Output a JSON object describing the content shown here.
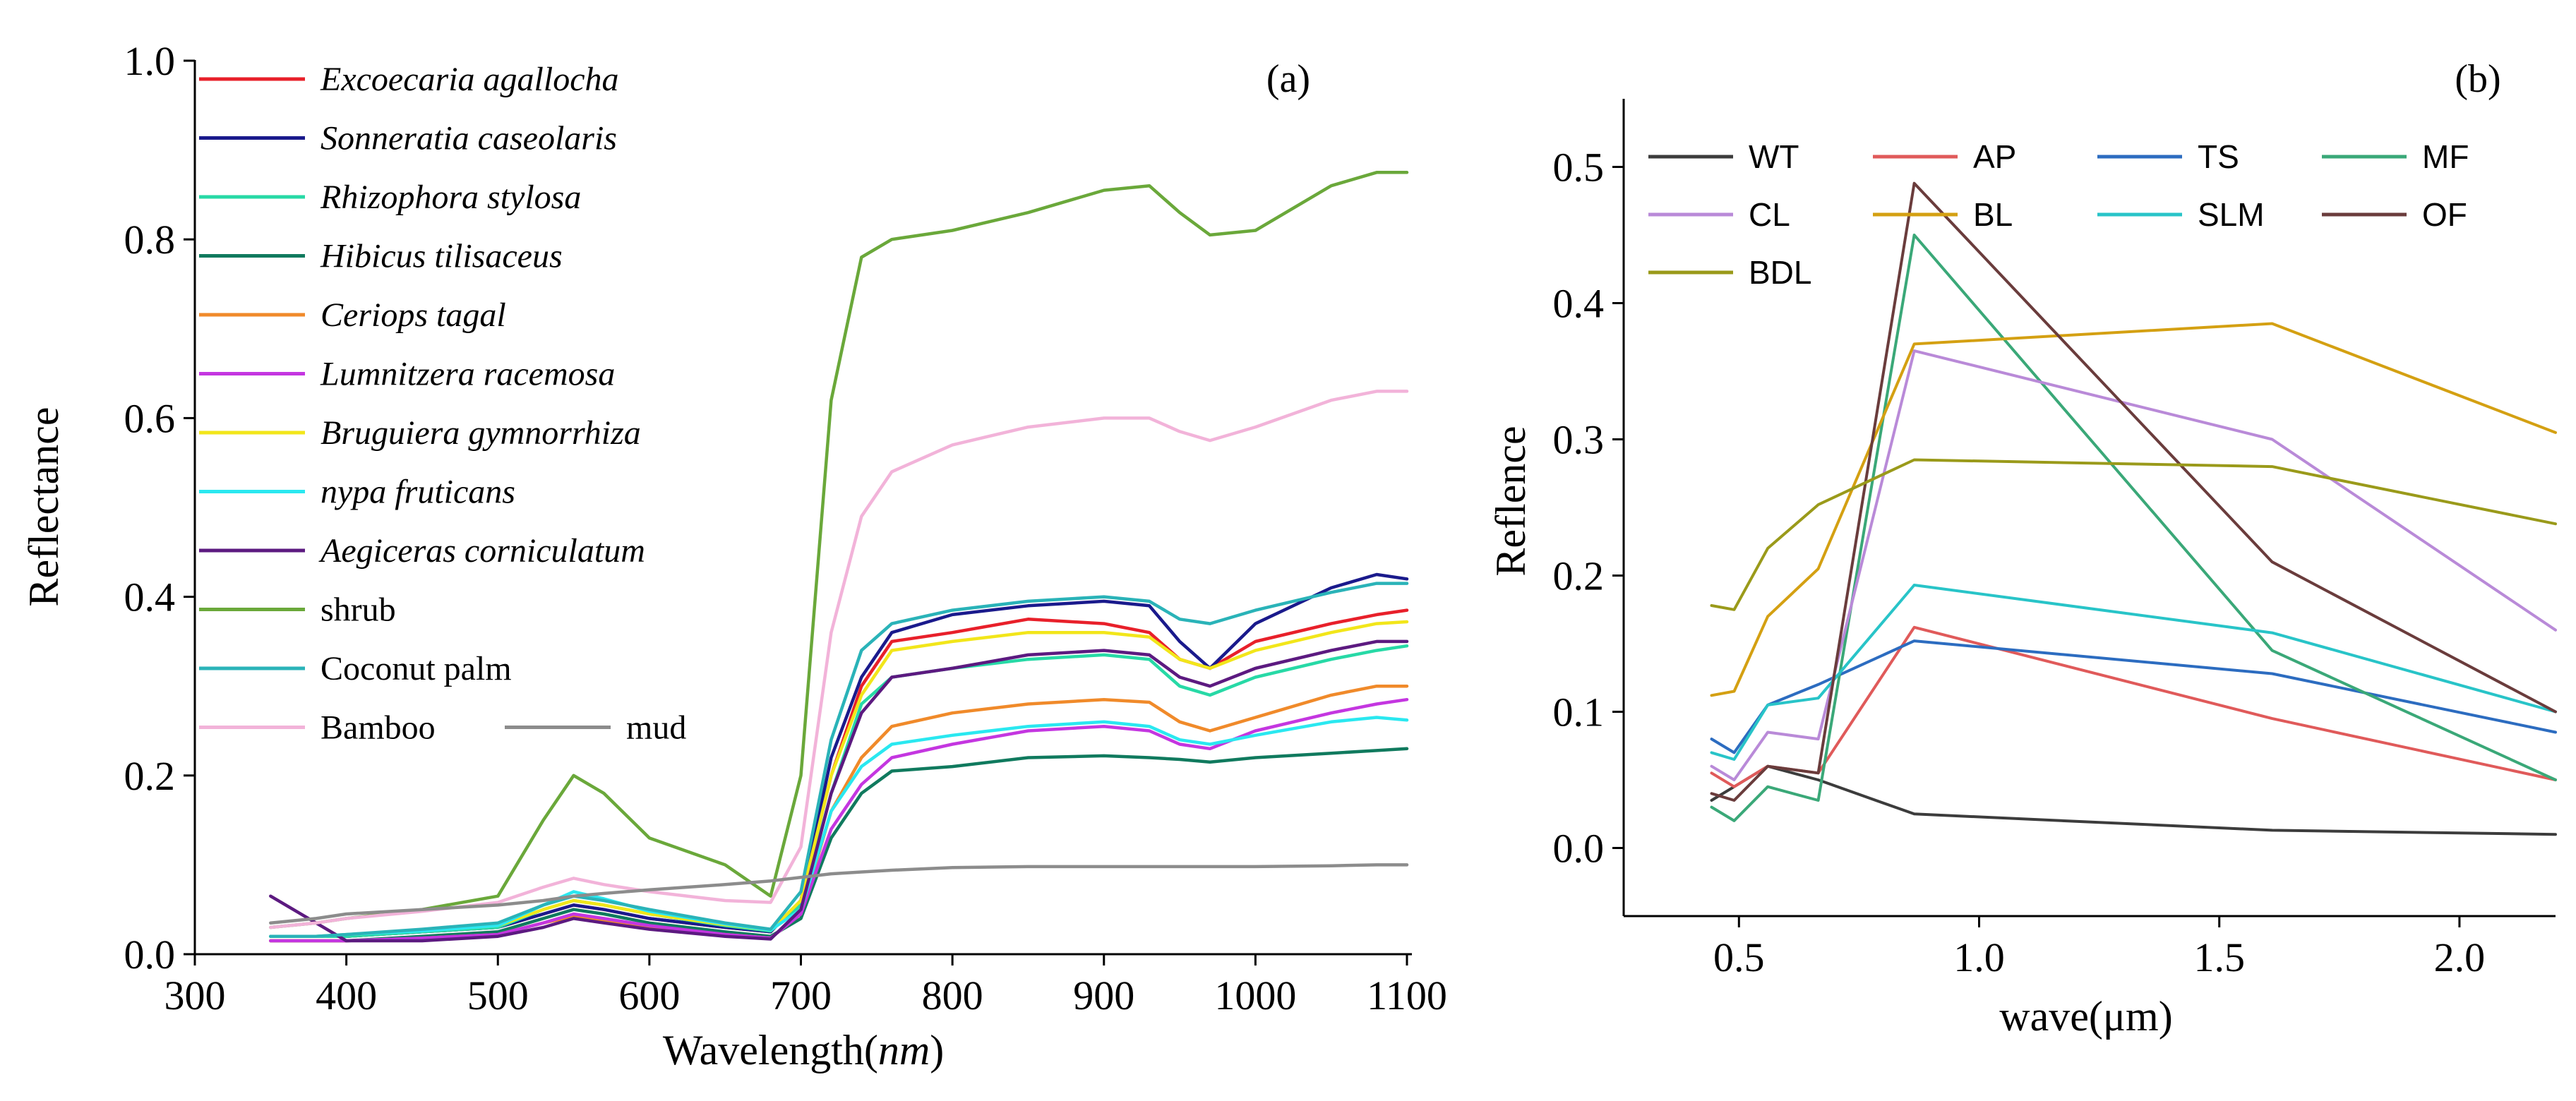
{
  "chart_data": [
    {
      "type": "line",
      "panel_label": "(a)",
      "xlabel_prefix": "Wavelength(",
      "xlabel_unit": "nm",
      "xlabel_suffix": ")",
      "ylabel": "Reflectance",
      "xlim": [
        300,
        1100
      ],
      "ylim": [
        0,
        1.0
      ],
      "xticks": [
        300,
        400,
        500,
        600,
        700,
        800,
        900,
        1000,
        1100
      ],
      "xtick_labels": [
        "300",
        "400",
        "500",
        "600",
        "700",
        "800",
        "900",
        "1000",
        "1100"
      ],
      "yticks": [
        0,
        0.2,
        0.4,
        0.6,
        0.8,
        1.0
      ],
      "ytick_labels": [
        "0.0",
        "0.2",
        "0.4",
        "0.6",
        "0.8",
        "1.0"
      ],
      "legend_position": "top-left",
      "x": [
        350,
        380,
        400,
        450,
        500,
        530,
        550,
        570,
        600,
        650,
        680,
        700,
        720,
        740,
        760,
        800,
        850,
        900,
        930,
        950,
        970,
        1000,
        1050,
        1080,
        1100
      ],
      "series": [
        {
          "name": "Excoecaria agallocha",
          "italic": true,
          "color": "#e8202a",
          "values": [
            0.02,
            0.02,
            0.02,
            0.025,
            0.03,
            0.045,
            0.055,
            0.05,
            0.04,
            0.03,
            0.025,
            0.06,
            0.2,
            0.3,
            0.35,
            0.36,
            0.375,
            0.37,
            0.36,
            0.33,
            0.32,
            0.35,
            0.37,
            0.38,
            0.385
          ]
        },
        {
          "name": "Sonneratia caseolaris",
          "italic": true,
          "color": "#1a1a8c",
          "values": [
            0.02,
            0.02,
            0.02,
            0.025,
            0.03,
            0.045,
            0.055,
            0.05,
            0.04,
            0.03,
            0.025,
            0.06,
            0.22,
            0.31,
            0.36,
            0.38,
            0.39,
            0.395,
            0.39,
            0.35,
            0.32,
            0.37,
            0.41,
            0.425,
            0.42
          ]
        },
        {
          "name": "Rhizophora stylosa",
          "italic": true,
          "color": "#27d9a6",
          "values": [
            0.02,
            0.02,
            0.02,
            0.025,
            0.03,
            0.05,
            0.06,
            0.055,
            0.045,
            0.032,
            0.026,
            0.055,
            0.18,
            0.28,
            0.31,
            0.32,
            0.33,
            0.335,
            0.33,
            0.3,
            0.29,
            0.31,
            0.33,
            0.34,
            0.345
          ]
        },
        {
          "name": "Hibicus tilisaceus",
          "italic": true,
          "color": "#107a5e",
          "values": [
            0.015,
            0.015,
            0.015,
            0.02,
            0.025,
            0.04,
            0.05,
            0.045,
            0.035,
            0.025,
            0.02,
            0.04,
            0.13,
            0.18,
            0.205,
            0.21,
            0.22,
            0.222,
            0.22,
            0.218,
            0.215,
            0.22,
            0.225,
            0.228,
            0.23
          ]
        },
        {
          "name": "Ceriops tagal",
          "italic": true,
          "color": "#f08a2a",
          "values": [
            0.015,
            0.015,
            0.015,
            0.018,
            0.022,
            0.035,
            0.042,
            0.038,
            0.03,
            0.022,
            0.018,
            0.045,
            0.16,
            0.22,
            0.255,
            0.27,
            0.28,
            0.285,
            0.282,
            0.26,
            0.25,
            0.265,
            0.29,
            0.3,
            0.3
          ]
        },
        {
          "name": "Lumnitzera racemosa",
          "italic": true,
          "color": "#c436e0",
          "values": [
            0.015,
            0.015,
            0.015,
            0.018,
            0.022,
            0.035,
            0.045,
            0.04,
            0.032,
            0.022,
            0.018,
            0.045,
            0.14,
            0.19,
            0.22,
            0.235,
            0.25,
            0.255,
            0.25,
            0.235,
            0.23,
            0.25,
            0.27,
            0.28,
            0.285
          ]
        },
        {
          "name": "Bruguiera gymnorrhiza",
          "italic": true,
          "color": "#f2e61a",
          "values": [
            0.02,
            0.02,
            0.022,
            0.026,
            0.032,
            0.05,
            0.06,
            0.055,
            0.045,
            0.033,
            0.027,
            0.06,
            0.2,
            0.29,
            0.34,
            0.35,
            0.36,
            0.36,
            0.355,
            0.33,
            0.32,
            0.34,
            0.36,
            0.37,
            0.372
          ]
        },
        {
          "name": "nypa fruticans",
          "italic": true,
          "color": "#2ae8f0",
          "values": [
            0.02,
            0.02,
            0.022,
            0.026,
            0.032,
            0.055,
            0.07,
            0.062,
            0.048,
            0.034,
            0.027,
            0.05,
            0.16,
            0.21,
            0.235,
            0.245,
            0.255,
            0.26,
            0.255,
            0.24,
            0.235,
            0.245,
            0.26,
            0.265,
            0.262
          ]
        },
        {
          "name": "Aegiceras corniculatum",
          "italic": true,
          "color": "#5c1a80",
          "values": [
            0.065,
            0.035,
            0.015,
            0.015,
            0.02,
            0.03,
            0.04,
            0.035,
            0.028,
            0.02,
            0.017,
            0.05,
            0.18,
            0.27,
            0.31,
            0.32,
            0.335,
            0.34,
            0.335,
            0.31,
            0.3,
            0.32,
            0.34,
            0.35,
            0.35
          ]
        },
        {
          "name": "shrub",
          "italic": false,
          "color": "#6aa83a",
          "values": [
            0.03,
            0.035,
            0.04,
            0.05,
            0.065,
            0.15,
            0.2,
            0.18,
            0.13,
            0.1,
            0.065,
            0.2,
            0.62,
            0.78,
            0.8,
            0.81,
            0.83,
            0.855,
            0.86,
            0.83,
            0.805,
            0.81,
            0.86,
            0.875,
            0.875
          ]
        },
        {
          "name": "Coconut palm",
          "italic": false,
          "color": "#2ab3b8",
          "values": [
            0.02,
            0.02,
            0.022,
            0.028,
            0.035,
            0.055,
            0.065,
            0.06,
            0.05,
            0.035,
            0.028,
            0.07,
            0.24,
            0.34,
            0.37,
            0.385,
            0.395,
            0.4,
            0.395,
            0.375,
            0.37,
            0.385,
            0.405,
            0.415,
            0.415
          ]
        },
        {
          "name": "Bamboo",
          "italic": false,
          "color": "#f2b3d9",
          "values": [
            0.03,
            0.035,
            0.04,
            0.048,
            0.058,
            0.075,
            0.085,
            0.078,
            0.07,
            0.06,
            0.058,
            0.12,
            0.36,
            0.49,
            0.54,
            0.57,
            0.59,
            0.6,
            0.6,
            0.585,
            0.575,
            0.59,
            0.62,
            0.63,
            0.63
          ]
        },
        {
          "name": "mud",
          "italic": false,
          "color": "#8c8c8c",
          "values": [
            0.035,
            0.04,
            0.045,
            0.05,
            0.055,
            0.06,
            0.065,
            0.068,
            0.072,
            0.078,
            0.082,
            0.086,
            0.09,
            0.092,
            0.094,
            0.097,
            0.098,
            0.098,
            0.098,
            0.098,
            0.098,
            0.098,
            0.099,
            0.1,
            0.1
          ]
        }
      ]
    },
    {
      "type": "line",
      "panel_label": "(b)",
      "xlabel": "wave(μm)",
      "ylabel": "Reflence",
      "xlim": [
        0.26,
        2.2
      ],
      "ylim": [
        -0.05,
        0.55
      ],
      "xticks": [
        0.5,
        1.0,
        1.5,
        2.0
      ],
      "xtick_labels": [
        "0.5",
        "1.0",
        "1.5",
        "2.0"
      ],
      "yticks": [
        0.0,
        0.1,
        0.2,
        0.3,
        0.4,
        0.5
      ],
      "ytick_labels": [
        "0.0",
        "0.1",
        "0.2",
        "0.3",
        "0.4",
        "0.5"
      ],
      "legend_position": "top",
      "x": [
        0.443,
        0.49,
        0.56,
        0.665,
        0.865,
        1.61,
        2.2
      ],
      "series": [
        {
          "name": "WT",
          "color": "#3c3c3c",
          "values": [
            0.035,
            0.045,
            0.06,
            0.05,
            0.025,
            0.013,
            0.01
          ]
        },
        {
          "name": "AP",
          "color": "#e05a5a",
          "values": [
            0.055,
            0.045,
            0.06,
            0.055,
            0.162,
            0.095,
            0.05
          ]
        },
        {
          "name": "TS",
          "color": "#2c6cc0",
          "values": [
            0.08,
            0.07,
            0.105,
            0.12,
            0.152,
            0.128,
            0.085
          ]
        },
        {
          "name": "MF",
          "color": "#3aa878",
          "values": [
            0.03,
            0.02,
            0.045,
            0.035,
            0.45,
            0.145,
            0.05
          ]
        },
        {
          "name": "CL",
          "color": "#b98ad8",
          "values": [
            0.06,
            0.05,
            0.085,
            0.08,
            0.365,
            0.3,
            0.16
          ]
        },
        {
          "name": "BL",
          "color": "#d4a012",
          "values": [
            0.112,
            0.115,
            0.17,
            0.205,
            0.37,
            0.385,
            0.305
          ]
        },
        {
          "name": "SLM",
          "color": "#28c4c8",
          "values": [
            0.07,
            0.065,
            0.105,
            0.11,
            0.193,
            0.158,
            0.1
          ]
        },
        {
          "name": "OF",
          "color": "#6a3c3c",
          "values": [
            0.04,
            0.035,
            0.06,
            0.055,
            0.488,
            0.21,
            0.1
          ]
        },
        {
          "name": "BDL",
          "color": "#9a9a1a",
          "values": [
            0.178,
            0.175,
            0.22,
            0.252,
            0.285,
            0.28,
            0.238
          ]
        }
      ]
    }
  ]
}
